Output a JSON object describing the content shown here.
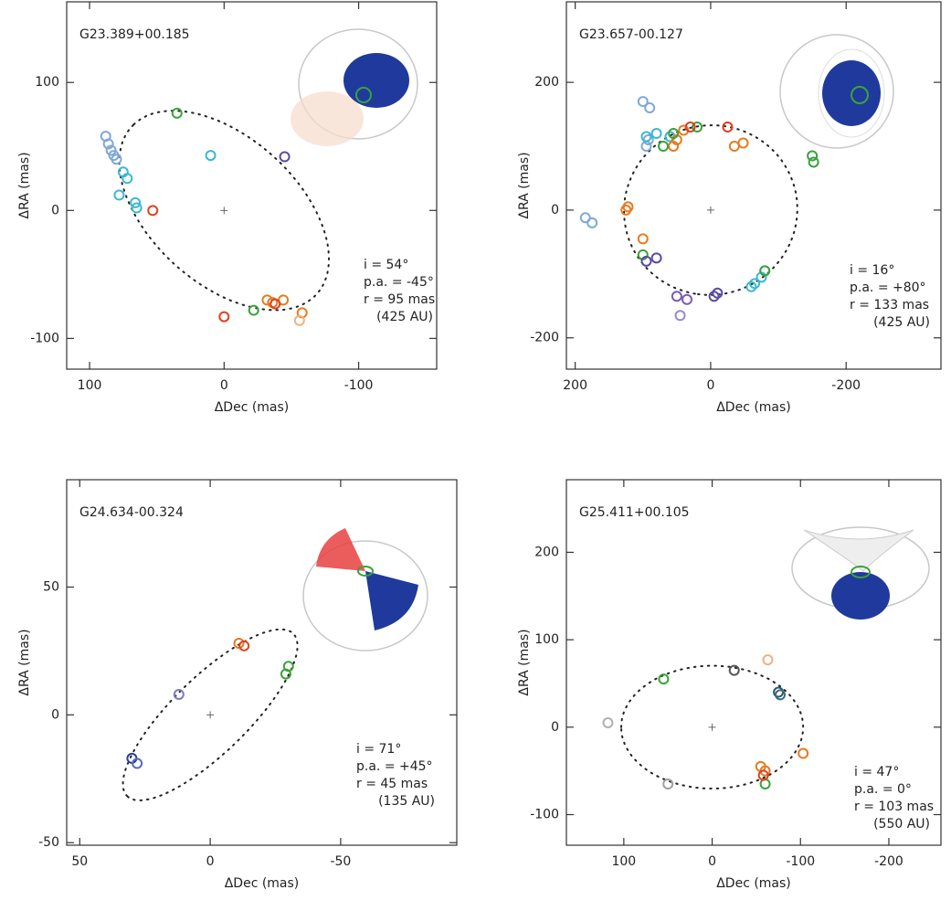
{
  "chart_data": [
    {
      "type": "scatter",
      "title": "G23.389+00.185",
      "x_label": "ΔDec (mas)",
      "y_label": "ΔRA (mas)",
      "xlim": [
        117,
        -158
      ],
      "ylim": [
        -124,
        163
      ],
      "xticks": [
        100,
        0,
        -100
      ],
      "yticks": [
        100,
        0,
        -100
      ],
      "x": [
        88,
        86,
        84,
        82,
        80,
        75,
        72,
        78,
        66,
        65,
        53,
        35,
        10,
        -45,
        -32,
        -36,
        -44,
        -58,
        -38,
        0,
        -22,
        -56
      ],
      "values": [
        58,
        52,
        47,
        43,
        40,
        30,
        25,
        12,
        6,
        2,
        0,
        76,
        43,
        42,
        -70,
        -72,
        -70,
        -80,
        -73,
        -83,
        -78,
        -86
      ],
      "colors": [
        "#7fa8d8",
        "#7fa8d8",
        "#7fa8d8",
        "#7fa8d8",
        "#7fa8d8",
        "#3cb8d0",
        "#3cb8d0",
        "#3cb8d0",
        "#3cb8d0",
        "#3cb8d0",
        "#e0401f",
        "#3aa23a",
        "#3cb8d0",
        "#5a4aa8",
        "#e87a20",
        "#e87a20",
        "#e87a20",
        "#e87a20",
        "#e0401f",
        "#e0401f",
        "#3aa23a",
        "#f0b080"
      ],
      "model": {
        "i": {
          "value": 54,
          "label": "i = 54°"
        },
        "pa": {
          "value": -45,
          "label": "p.a. = -45°"
        },
        "r": {
          "value": 95,
          "label": "r = 95 mas"
        },
        "size_label": "(425 AU)"
      }
    },
    {
      "type": "scatter",
      "title": "G23.657-00.127",
      "x_label": "ΔDec (mas)",
      "y_label": "ΔRA (mas)",
      "xlim": [
        213,
        -340
      ],
      "ylim": [
        -249,
        326
      ],
      "xticks": [
        200,
        0,
        -200
      ],
      "yticks": [
        200,
        0,
        -200
      ],
      "x": [
        185,
        175,
        95,
        92,
        100,
        90,
        95,
        80,
        60,
        -60,
        -65,
        -75,
        -80,
        125,
        122,
        100,
        55,
        50,
        40,
        -35,
        -48,
        70,
        55,
        20,
        -80,
        -150,
        -152,
        100,
        80,
        95,
        50,
        35,
        -5,
        -10,
        -25,
        30,
        45
      ],
      "values": [
        -12,
        -20,
        100,
        110,
        170,
        160,
        115,
        120,
        115,
        -120,
        -115,
        -105,
        -95,
        0,
        5,
        -45,
        100,
        110,
        125,
        100,
        105,
        100,
        120,
        130,
        -95,
        85,
        75,
        -70,
        -75,
        -80,
        -135,
        -140,
        -135,
        -130,
        130,
        130,
        -165
      ],
      "colors": [
        "#7fa8d8",
        "#7fa8d8",
        "#7fa8d8",
        "#7fa8d8",
        "#7fa8d8",
        "#7fa8d8",
        "#3cb8d0",
        "#3cb8d0",
        "#3cb8d0",
        "#3cb8d0",
        "#3cb8d0",
        "#3cb8d0",
        "#3cb8d0",
        "#e87a20",
        "#e87a20",
        "#e87a20",
        "#e87a20",
        "#e87a20",
        "#e87a20",
        "#e87a20",
        "#e87a20",
        "#3aa23a",
        "#3aa23a",
        "#3aa23a",
        "#3aa23a",
        "#3aa23a",
        "#3aa23a",
        "#3aa23a",
        "#5a4aa8",
        "#5a4aa8",
        "#7a5ab8",
        "#7a5ab8",
        "#5a4aa8",
        "#5a4aa8",
        "#e0401f",
        "#e0401f",
        "#9a8ac8"
      ],
      "model": {
        "i": {
          "value": 16,
          "label": "i = 16°"
        },
        "pa": {
          "value": 80,
          "label": "p.a. = +80°"
        },
        "r": {
          "value": 133,
          "label": "r = 133 mas"
        },
        "size_label": "(425 AU)"
      }
    },
    {
      "type": "scatter",
      "title": "G24.634-00.324",
      "x_label": "ΔDec (mas)",
      "y_label": "ΔRA (mas)",
      "xlim": [
        55,
        -94.5
      ],
      "ylim": [
        -51,
        92
      ],
      "xticks": [
        50,
        0,
        -50
      ],
      "yticks": [
        50,
        0,
        -50
      ],
      "x": [
        30,
        28,
        12,
        -11,
        -13,
        -30,
        -29
      ],
      "values": [
        -17,
        -19,
        8,
        28,
        27,
        19,
        16
      ],
      "colors": [
        "#2a3f9c",
        "#5a6ab8",
        "#7a7ac8",
        "#e87a20",
        "#e0401f",
        "#3aa23a",
        "#3aa23a"
      ],
      "model": {
        "i": {
          "value": 71,
          "label": "i = 71°"
        },
        "pa": {
          "value": 45,
          "label": "p.a. = +45°"
        },
        "r": {
          "value": 45,
          "label": "r = 45 mas"
        },
        "size_label": "(135 AU)"
      }
    },
    {
      "type": "scatter",
      "title": "G25.411+00.105",
      "x_label": "ΔDec (mas)",
      "y_label": "ΔRA (mas)",
      "xlim": [
        165,
        -259
      ],
      "ylim": [
        -135,
        283
      ],
      "xticks": [
        100,
        0,
        -100,
        -200
      ],
      "yticks": [
        200,
        100,
        0,
        -100
      ],
      "x": [
        118,
        50,
        55,
        -60,
        -25,
        -75,
        -77,
        -63,
        -55,
        -60,
        -58,
        -103
      ],
      "values": [
        5,
        -65,
        55,
        -65,
        65,
        40,
        37,
        77,
        -45,
        -50,
        -55,
        -30
      ],
      "colors": [
        "#b0b0b0",
        "#a0a0a0",
        "#3aa23a",
        "#3aa23a",
        "#555555",
        "#2a5a6a",
        "#3a6a8a",
        "#f0b080",
        "#e87a20",
        "#e87a20",
        "#e0401f",
        "#e87a20"
      ],
      "model": {
        "i": {
          "value": 47,
          "label": "i = 47°"
        },
        "pa": {
          "value": 0,
          "label": "p.a. = 0°"
        },
        "r": {
          "value": 103,
          "label": "r = 103 mas"
        },
        "size_label": "(550 AU)"
      }
    }
  ]
}
